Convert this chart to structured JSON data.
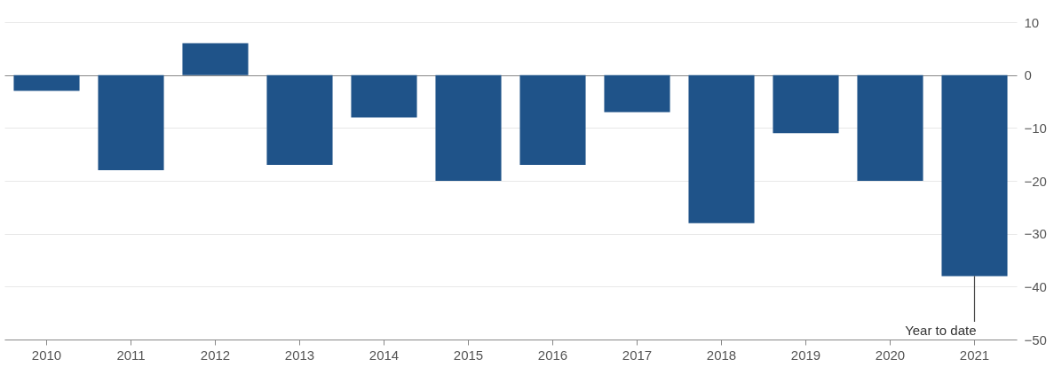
{
  "chart_data": {
    "type": "bar",
    "categories": [
      "2010",
      "2011",
      "2012",
      "2013",
      "2014",
      "2015",
      "2016",
      "2017",
      "2018",
      "2019",
      "2020",
      "2021"
    ],
    "values": [
      -3,
      -18,
      6,
      -17,
      -8,
      -20,
      -17,
      -7,
      -28,
      -11,
      -20,
      -38
    ],
    "color": "#1f5389",
    "ylim": [
      -50,
      10
    ],
    "yticks": [
      10,
      0,
      -10,
      -20,
      -30,
      -40,
      -50
    ],
    "grid": "y",
    "annotations": [
      {
        "text": "Year to date",
        "x": "2021",
        "y": -38
      }
    ]
  }
}
